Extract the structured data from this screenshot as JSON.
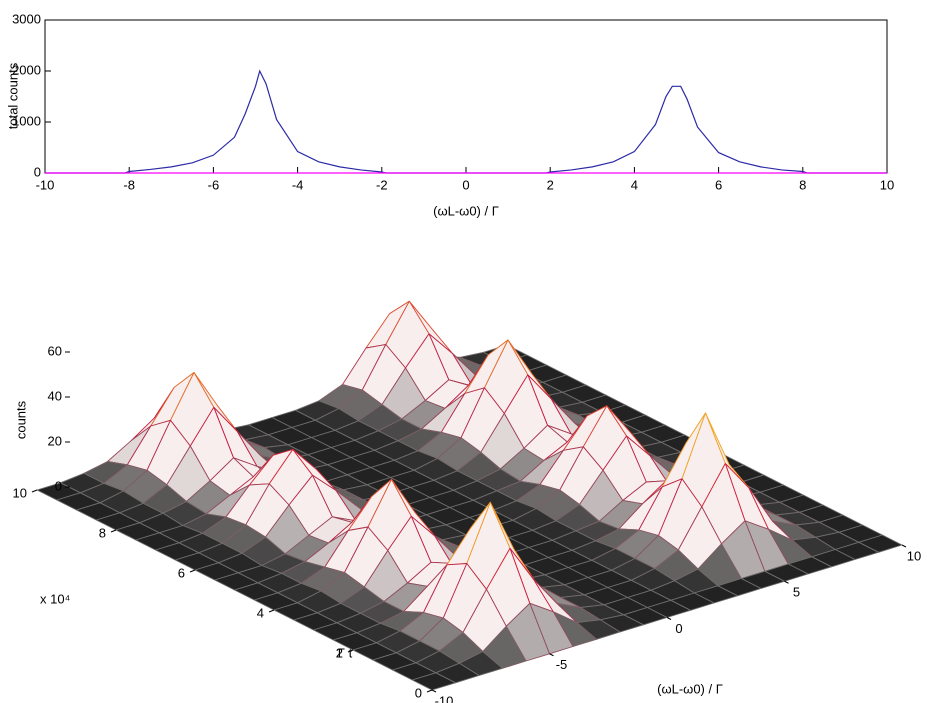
{
  "chart_data": [
    {
      "type": "line",
      "xlabel": "(ωL-ω0) / Γ",
      "ylabel": "total counts",
      "x": [
        -10,
        -8.1,
        -8,
        -7.5,
        -7,
        -6.5,
        -6,
        -5.5,
        -5.25,
        -5,
        -4.9,
        -4.75,
        -4.5,
        -4,
        -3.5,
        -3,
        -2.5,
        -2,
        -1.9,
        0,
        1.9,
        2,
        2.5,
        3,
        3.5,
        4,
        4.5,
        4.75,
        4.9,
        5.1,
        5.25,
        5.5,
        6,
        6.5,
        7,
        7.5,
        8,
        8.1,
        10
      ],
      "series": [
        {
          "color": "#2b2ba8",
          "values": [
            0,
            0,
            30,
            70,
            120,
            200,
            350,
            700,
            1150,
            1700,
            2000,
            1750,
            1050,
            420,
            220,
            120,
            60,
            20,
            0,
            0,
            0,
            20,
            60,
            120,
            220,
            420,
            950,
            1500,
            1700,
            1700,
            1450,
            900,
            400,
            220,
            120,
            60,
            30,
            0,
            0
          ]
        },
        {
          "color": "#ff00ff",
          "values": [
            0,
            0,
            0,
            0,
            0,
            0,
            0,
            0,
            0,
            0,
            0,
            0,
            0,
            0,
            0,
            0,
            0,
            0,
            0,
            0,
            0,
            0,
            0,
            0,
            0,
            0,
            0,
            0,
            0,
            0,
            0,
            0,
            0,
            0,
            0,
            0,
            0,
            0,
            0
          ]
        }
      ],
      "xlim": [
        -10,
        10
      ],
      "xticks": [
        -10,
        -8,
        -6,
        -4,
        -2,
        0,
        2,
        4,
        6,
        8,
        10
      ],
      "ylim": [
        0,
        3000
      ],
      "yticks": [
        0,
        1000,
        2000,
        3000
      ]
    },
    {
      "type": "surface",
      "xlabel": "(ωL-ω0) / Γ",
      "ylabel": "Γ t",
      "zlabel": "counts",
      "y_multiplier": "x 10⁴",
      "x": [
        -10,
        -9,
        -8,
        -7,
        -6,
        -5,
        -4,
        -3,
        -2,
        -1,
        0,
        1,
        2,
        3,
        4,
        5,
        6,
        7,
        8,
        9,
        10
      ],
      "y": [
        0,
        0.5,
        1,
        1.5,
        2,
        2.5,
        3,
        3.5,
        4,
        4.5,
        5,
        5.5,
        6,
        6.5,
        7,
        7.5,
        8,
        8.5,
        9,
        9.5,
        10
      ],
      "z": [
        [
          0,
          0,
          0,
          0,
          0,
          0,
          0,
          0,
          0,
          0,
          0,
          0,
          0,
          0,
          0,
          0,
          0,
          0,
          0,
          0,
          0
        ],
        [
          0,
          0,
          1,
          3,
          11,
          18,
          11,
          3,
          1,
          0,
          0,
          0,
          0,
          0,
          0,
          0,
          0,
          0,
          0,
          0,
          0
        ],
        [
          0,
          0,
          2,
          7,
          23,
          38,
          21,
          7,
          2,
          0,
          0,
          0,
          1,
          3,
          11,
          18,
          11,
          3,
          1,
          0,
          0
        ],
        [
          0,
          0,
          2,
          9,
          30,
          54,
          30,
          11,
          2,
          0,
          0,
          0,
          2,
          7,
          23,
          39,
          25,
          7,
          2,
          0,
          0
        ],
        [
          0,
          0,
          2,
          7,
          25,
          38,
          23,
          7,
          2,
          0,
          0,
          0,
          2,
          9,
          31,
          57,
          31,
          9,
          2,
          0,
          0
        ],
        [
          0,
          0,
          1,
          3,
          11,
          18,
          11,
          3,
          1,
          0,
          0,
          0,
          2,
          7,
          23,
          39,
          21,
          7,
          2,
          0,
          0
        ],
        [
          0,
          0,
          1,
          3,
          8,
          14,
          8,
          3,
          1,
          0,
          0,
          0,
          1,
          3,
          11,
          18,
          11,
          3,
          1,
          0,
          0
        ],
        [
          0,
          0,
          1,
          5,
          18,
          30,
          18,
          5,
          1,
          0,
          0,
          0,
          1,
          2,
          8,
          13,
          8,
          2,
          1,
          0,
          0
        ],
        [
          0,
          0,
          2,
          7,
          24,
          42,
          24,
          7,
          2,
          0,
          0,
          0,
          1,
          5,
          17,
          29,
          17,
          5,
          1,
          0,
          0
        ],
        [
          0,
          0,
          1,
          5,
          18,
          30,
          18,
          5,
          1,
          0,
          0,
          0,
          2,
          7,
          23,
          38,
          23,
          7,
          2,
          0,
          0
        ],
        [
          0,
          0,
          1,
          3,
          8,
          14,
          8,
          3,
          1,
          0,
          0,
          0,
          1,
          5,
          17,
          29,
          17,
          5,
          1,
          0,
          0
        ],
        [
          0,
          0,
          0,
          2,
          7,
          12,
          7,
          2,
          0,
          0,
          0,
          0,
          1,
          2,
          8,
          13,
          8,
          2,
          1,
          0,
          0
        ],
        [
          0,
          0,
          1,
          5,
          16,
          26,
          16,
          5,
          1,
          0,
          0,
          0,
          1,
          3,
          9,
          16,
          9,
          3,
          1,
          0,
          0
        ],
        [
          0,
          0,
          1,
          6,
          21,
          33,
          21,
          6,
          1,
          0,
          0,
          0,
          1,
          6,
          20,
          34,
          20,
          6,
          1,
          0,
          0
        ],
        [
          0,
          0,
          1,
          5,
          16,
          26,
          16,
          5,
          1,
          0,
          0,
          0,
          2,
          8,
          27,
          45,
          27,
          8,
          2,
          0,
          0
        ],
        [
          0,
          0,
          0,
          2,
          7,
          12,
          7,
          2,
          0,
          0,
          0,
          0,
          1,
          6,
          20,
          34,
          20,
          6,
          1,
          0,
          0
        ],
        [
          0,
          0,
          1,
          3,
          9,
          16,
          9,
          3,
          1,
          0,
          0,
          0,
          1,
          3,
          9,
          16,
          9,
          3,
          1,
          0,
          0
        ],
        [
          0,
          0,
          1,
          6,
          20,
          34,
          20,
          6,
          1,
          0,
          0,
          0,
          1,
          3,
          8,
          14,
          8,
          3,
          1,
          0,
          0
        ],
        [
          0,
          0,
          2,
          8,
          27,
          45,
          27,
          8,
          2,
          0,
          0,
          0,
          1,
          5,
          18,
          30,
          18,
          5,
          1,
          0,
          0
        ],
        [
          0,
          0,
          1,
          6,
          20,
          34,
          20,
          6,
          1,
          0,
          0,
          0,
          2,
          7,
          24,
          40,
          24,
          7,
          2,
          0,
          0
        ],
        [
          0,
          0,
          1,
          3,
          9,
          16,
          9,
          3,
          1,
          0,
          0,
          0,
          1,
          5,
          18,
          30,
          18,
          5,
          1,
          0,
          0
        ]
      ],
      "xlim": [
        -10,
        10
      ],
      "xticks": [
        -10,
        -5,
        0,
        5,
        10
      ],
      "ylim": [
        0,
        10
      ],
      "yticks": [
        0,
        2,
        4,
        6,
        8,
        10
      ],
      "zlim": [
        0,
        60
      ],
      "zticks": [
        0,
        20,
        40,
        60
      ],
      "edge_colors": [
        "#6e6e6e",
        "#d0103a",
        "#ffd21a"
      ],
      "face_colors": [
        "#222222",
        "#f8eeee"
      ]
    }
  ]
}
